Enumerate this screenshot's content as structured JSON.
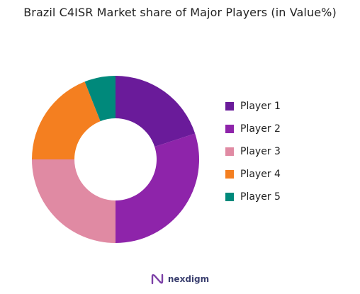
{
  "chart_data": {
    "type": "pie",
    "title": "Brazil C4ISR Market share of Major Players (in Value%)",
    "categories": [
      "Player 1",
      "Player 2",
      "Player 3",
      "Player 4",
      "Player 5"
    ],
    "values": [
      20,
      30,
      25,
      19,
      6
    ],
    "colors": [
      "#6a1b9a",
      "#8e24aa",
      "#e08aa3",
      "#f47f20",
      "#00897b"
    ],
    "donut": true,
    "start_angle": "12 o'clock, clockwise",
    "legend_position": "right"
  },
  "brand": {
    "name": "nexdigm",
    "icon": "nexdigm-logo-icon"
  }
}
